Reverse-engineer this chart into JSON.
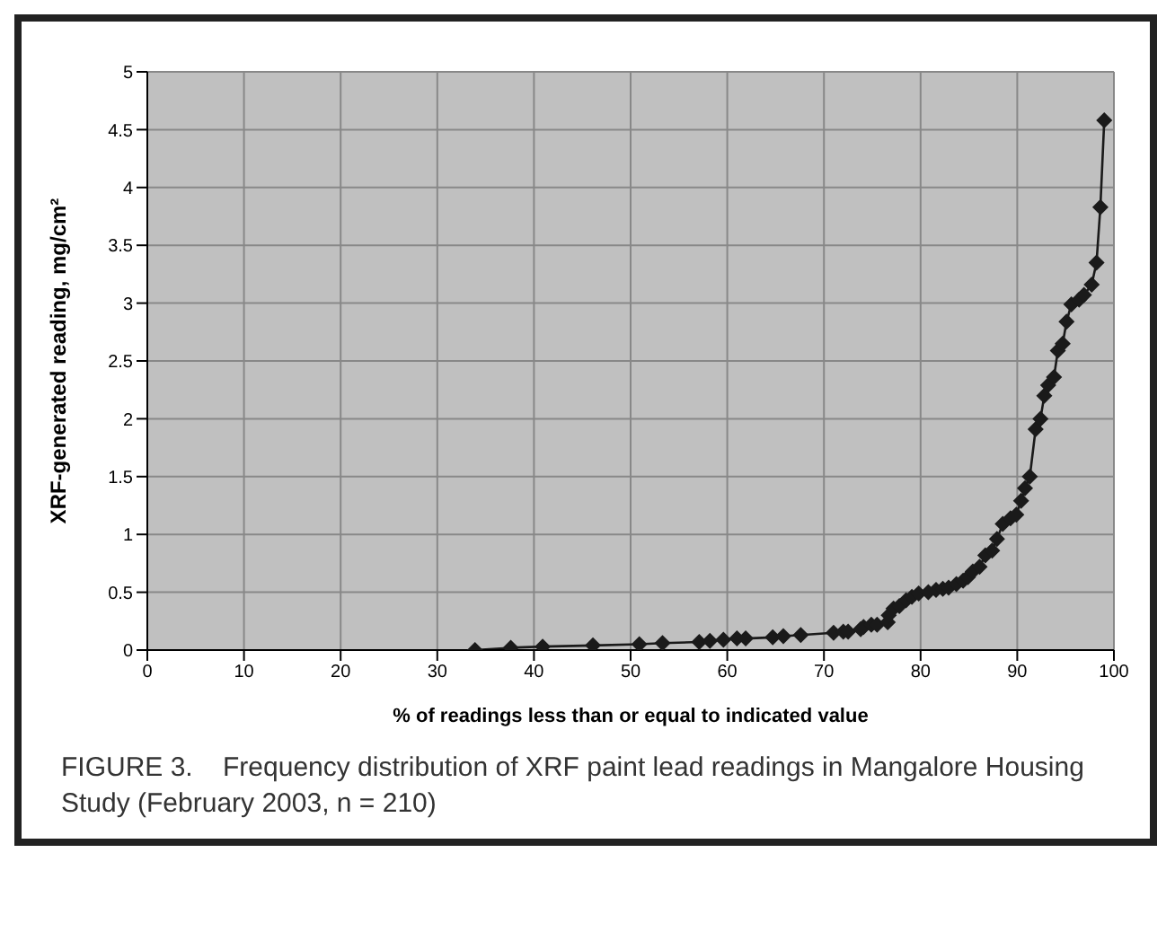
{
  "chart_data": {
    "type": "line",
    "xlabel": "% of readings less than or equal to indicated value",
    "ylabel": "XRF-generated reading, mg/cm²",
    "annotations": [
      "FIGURE 3.    Frequency distribution of XRF paint lead readings in Mangalore Housing Study (February 2003, n = 210)"
    ],
    "x": [
      33.9,
      37.6,
      40.9,
      46.1,
      50.9,
      53.3,
      57.1,
      58.2,
      59.6,
      61.0,
      61.9,
      64.7,
      65.8,
      67.6,
      71.0,
      72.0,
      72.5,
      73.8,
      74.1,
      74.9,
      75.5,
      76.6,
      76.7,
      77.2,
      77.8,
      78.5,
      79.1,
      79.8,
      80.8,
      81.6,
      82.3,
      82.9,
      83.7,
      84.4,
      84.9,
      85.4,
      86.1,
      86.7,
      87.4,
      87.9,
      88.5,
      89.3,
      89.9,
      90.4,
      90.8,
      91.3,
      91.9,
      92.4,
      92.8,
      93.2,
      93.8,
      94.2,
      94.7,
      95.1,
      95.6,
      96.4,
      96.9,
      97.7,
      98.2,
      98.6,
      99.0
    ],
    "series": [
      {
        "color": "#1a1a1a",
        "values": [
          0.0,
          0.02,
          0.03,
          0.04,
          0.05,
          0.06,
          0.07,
          0.08,
          0.09,
          0.1,
          0.1,
          0.11,
          0.12,
          0.13,
          0.15,
          0.16,
          0.16,
          0.18,
          0.2,
          0.22,
          0.22,
          0.24,
          0.3,
          0.36,
          0.38,
          0.43,
          0.46,
          0.49,
          0.5,
          0.52,
          0.53,
          0.54,
          0.57,
          0.6,
          0.63,
          0.68,
          0.72,
          0.82,
          0.86,
          0.96,
          1.09,
          1.14,
          1.17,
          1.29,
          1.4,
          1.5,
          1.91,
          2.0,
          2.2,
          2.29,
          2.36,
          2.59,
          2.65,
          2.84,
          2.99,
          3.03,
          3.07,
          3.16,
          3.35,
          3.83,
          4.58
        ]
      }
    ],
    "xlim": [
      0,
      100
    ],
    "xticks": [
      0,
      10,
      20,
      30,
      40,
      50,
      60,
      70,
      80,
      90,
      100
    ],
    "ylim": [
      0,
      5
    ],
    "yticks": [
      0,
      0.5,
      1,
      1.5,
      2,
      2.5,
      3,
      3.5,
      4,
      4.5,
      5
    ],
    "grid": true,
    "marker": "diamond",
    "line_style": "solid",
    "legend": false
  }
}
